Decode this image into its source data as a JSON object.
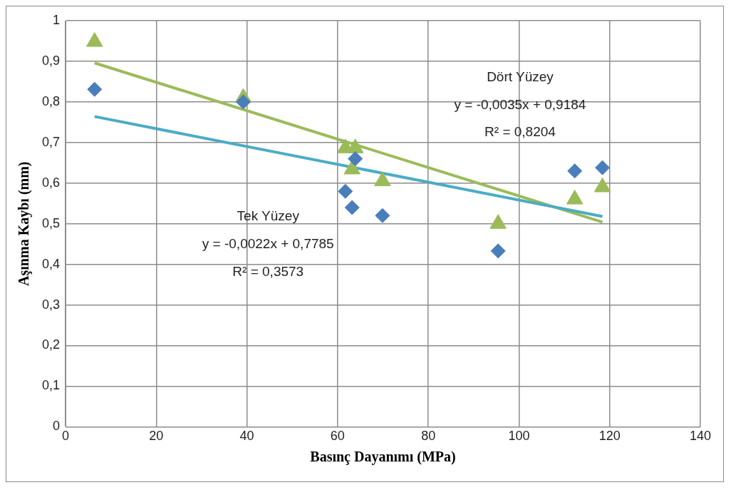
{
  "chart_data": {
    "type": "scatter",
    "xlabel": "Basınç Dayanımı (MPa)",
    "ylabel": "Aşınma Kaybı (mm)",
    "xlim": [
      0,
      140
    ],
    "xticks": [
      0,
      20,
      40,
      60,
      80,
      100,
      120,
      140
    ],
    "ylim": [
      0,
      1
    ],
    "yticks": [
      {
        "value": 0,
        "label": "0"
      },
      {
        "value": 0.1,
        "label": "0,1"
      },
      {
        "value": 0.2,
        "label": "0,2"
      },
      {
        "value": 0.3,
        "label": "0,3"
      },
      {
        "value": 0.4,
        "label": "0,4"
      },
      {
        "value": 0.5,
        "label": "0,5"
      },
      {
        "value": 0.6,
        "label": "0,6"
      },
      {
        "value": 0.7,
        "label": "0,7"
      },
      {
        "value": 0.8,
        "label": "0,8"
      },
      {
        "value": 0.9,
        "label": "0,9"
      },
      {
        "value": 1,
        "label": "1"
      }
    ],
    "grid": true,
    "legend": false,
    "series": [
      {
        "type": "scatter",
        "marker": "diamond",
        "color": "#4a7ebb",
        "x": [
          6.4,
          39.2,
          61.7,
          63.9,
          63.2,
          69.9,
          95.4,
          112.3,
          118.4
        ],
        "values": [
          0.831,
          0.8,
          0.58,
          0.66,
          0.54,
          0.52,
          0.433,
          0.63,
          0.638
        ]
      },
      {
        "type": "scatter",
        "marker": "triangle",
        "color": "#9bbb59",
        "x": [
          6.4,
          39.2,
          61.7,
          63.9,
          63.2,
          69.9,
          95.4,
          112.3,
          118.4
        ],
        "values": [
          0.948,
          0.81,
          0.686,
          0.686,
          0.634,
          0.605,
          0.5,
          0.56,
          0.59
        ]
      },
      {
        "type": "line",
        "marker": "none",
        "color": "#4bacc6",
        "x": [
          6.4,
          118.4
        ],
        "values": [
          0.764,
          0.518
        ]
      },
      {
        "type": "line",
        "marker": "none",
        "color": "#9bbb59",
        "x": [
          6.4,
          118.4
        ],
        "values": [
          0.896,
          0.504
        ]
      }
    ],
    "annotations": [
      "Dört Yüzey",
      "y = -0,0035x + 0,9184",
      "R² = 0,8204",
      "Tek Yüzey",
      "y = -0,0022x + 0,7785",
      "R² = 0,3573"
    ]
  }
}
